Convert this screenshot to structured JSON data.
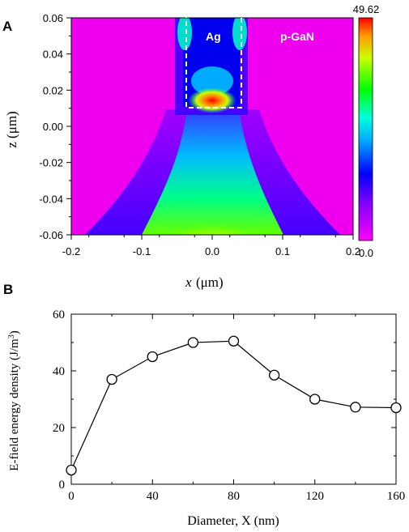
{
  "panel_a": {
    "label": "A",
    "ag_label": "Ag",
    "gan_label": "p-GaN",
    "colorbar_max": "49.62",
    "colorbar_min": "0.0",
    "xlabel_var": "x",
    "xlabel_unit": "(μm)",
    "ylabel": "z (μm)",
    "x_ticks": [
      "-0.2",
      "-0.1",
      "0.0",
      "0.1",
      "0.2"
    ],
    "y_ticks": [
      "0.06",
      "0.04",
      "0.02",
      "0.00",
      "-0.02",
      "-0.04",
      "-0.06"
    ]
  },
  "panel_b": {
    "label": "B",
    "xlabel": "Diameter, X (nm)",
    "ylabel": "E-field energy density (J/m",
    "ylabel_sup": "3",
    "ylabel_end": ")",
    "x_ticks": [
      "0",
      "40",
      "80",
      "120",
      "160"
    ],
    "y_ticks": [
      "0",
      "20",
      "40",
      "60"
    ]
  },
  "colors": {
    "marker_edge": "#000000",
    "line": "#000000",
    "heatmap_bg": "#ee00ee",
    "hot": "#ff2000"
  },
  "chart_data": [
    {
      "type": "heatmap",
      "xlabel": "x (μm)",
      "ylabel": "z (μm)",
      "xlim": [
        -0.2,
        0.2
      ],
      "ylim": [
        -0.06,
        0.06
      ],
      "color_range": [
        0.0,
        49.62
      ],
      "annotations": [
        "Ag",
        "p-GaN"
      ],
      "ag_region": {
        "x": [
          -0.04,
          0.04
        ],
        "z": [
          0.01,
          0.06
        ]
      }
    },
    {
      "type": "line",
      "xlabel": "Diameter, X (nm)",
      "ylabel": "E-field energy density (J/m3)",
      "xlim": [
        0,
        160
      ],
      "ylim": [
        0,
        60
      ],
      "x": [
        0,
        20,
        40,
        60,
        80,
        100,
        120,
        140,
        160
      ],
      "y": [
        5,
        37,
        45,
        50,
        50.5,
        38.5,
        30,
        27.2,
        27
      ]
    }
  ]
}
